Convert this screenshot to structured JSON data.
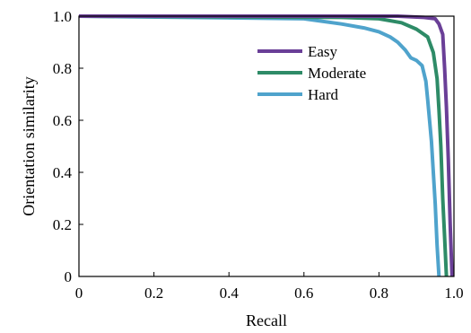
{
  "chart_data": {
    "type": "line",
    "title": "",
    "xlabel": "Recall",
    "ylabel": "Orientation similarity",
    "xlim": [
      0,
      1
    ],
    "ylim": [
      0,
      1
    ],
    "x_ticks": [
      "0",
      "0.2",
      "0.4",
      "0.6",
      "0.8",
      "1.0"
    ],
    "y_ticks": [
      "0",
      "0.2",
      "0.4",
      "0.6",
      "0.8",
      "1.0"
    ],
    "grid": false,
    "legend_position": "top-right",
    "series": [
      {
        "name": "Easy",
        "color": "#6a3f97",
        "points": [
          [
            0.0,
            1.0
          ],
          [
            0.85,
            1.0
          ],
          [
            0.92,
            0.995
          ],
          [
            0.95,
            0.99
          ],
          [
            0.96,
            0.97
          ],
          [
            0.97,
            0.93
          ],
          [
            0.975,
            0.8
          ],
          [
            0.98,
            0.65
          ],
          [
            0.985,
            0.45
          ],
          [
            0.99,
            0.2
          ],
          [
            0.995,
            0.0
          ]
        ]
      },
      {
        "name": "Moderate",
        "color": "#2e8b67",
        "points": [
          [
            0.0,
            1.0
          ],
          [
            0.7,
            0.995
          ],
          [
            0.8,
            0.99
          ],
          [
            0.86,
            0.975
          ],
          [
            0.9,
            0.95
          ],
          [
            0.93,
            0.92
          ],
          [
            0.945,
            0.86
          ],
          [
            0.955,
            0.76
          ],
          [
            0.96,
            0.64
          ],
          [
            0.965,
            0.5
          ],
          [
            0.97,
            0.3
          ],
          [
            0.975,
            0.15
          ],
          [
            0.98,
            0.0
          ]
        ]
      },
      {
        "name": "Hard",
        "color": "#4fa3cc",
        "points": [
          [
            0.0,
            1.0
          ],
          [
            0.6,
            0.99
          ],
          [
            0.7,
            0.97
          ],
          [
            0.76,
            0.955
          ],
          [
            0.8,
            0.94
          ],
          [
            0.83,
            0.92
          ],
          [
            0.85,
            0.9
          ],
          [
            0.87,
            0.87
          ],
          [
            0.885,
            0.84
          ],
          [
            0.9,
            0.83
          ],
          [
            0.915,
            0.81
          ],
          [
            0.925,
            0.75
          ],
          [
            0.93,
            0.68
          ],
          [
            0.935,
            0.6
          ],
          [
            0.94,
            0.52
          ],
          [
            0.945,
            0.4
          ],
          [
            0.95,
            0.28
          ],
          [
            0.955,
            0.12
          ],
          [
            0.96,
            0.0
          ]
        ]
      }
    ]
  }
}
